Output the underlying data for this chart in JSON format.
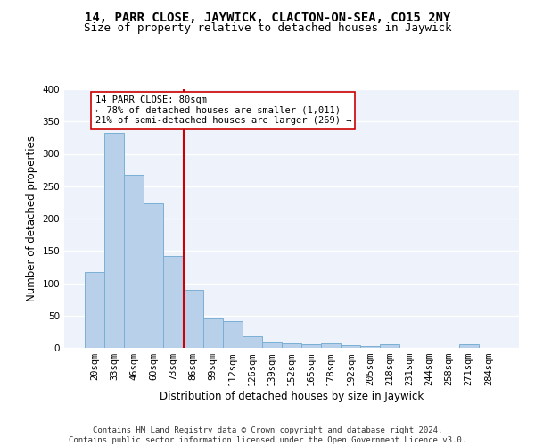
{
  "title": "14, PARR CLOSE, JAYWICK, CLACTON-ON-SEA, CO15 2NY",
  "subtitle": "Size of property relative to detached houses in Jaywick",
  "xlabel": "Distribution of detached houses by size in Jaywick",
  "ylabel": "Number of detached properties",
  "categories": [
    "20sqm",
    "33sqm",
    "46sqm",
    "60sqm",
    "73sqm",
    "86sqm",
    "99sqm",
    "112sqm",
    "126sqm",
    "139sqm",
    "152sqm",
    "165sqm",
    "178sqm",
    "192sqm",
    "205sqm",
    "218sqm",
    "231sqm",
    "244sqm",
    "258sqm",
    "271sqm",
    "284sqm"
  ],
  "values": [
    117,
    332,
    267,
    223,
    142,
    90,
    46,
    42,
    18,
    9,
    7,
    5,
    7,
    4,
    3,
    5,
    0,
    0,
    0,
    5,
    0
  ],
  "bar_color": "#b8d0ea",
  "bar_edge_color": "#7aafd4",
  "vline_color": "#cc0000",
  "annotation_text": "14 PARR CLOSE: 80sqm\n← 78% of detached houses are smaller (1,011)\n21% of semi-detached houses are larger (269) →",
  "annotation_box_color": "#ffffff",
  "annotation_box_edge": "#cc0000",
  "ylim": [
    0,
    400
  ],
  "yticks": [
    0,
    50,
    100,
    150,
    200,
    250,
    300,
    350,
    400
  ],
  "background_color": "#edf2fb",
  "grid_color": "#ffffff",
  "footer": "Contains HM Land Registry data © Crown copyright and database right 2024.\nContains public sector information licensed under the Open Government Licence v3.0.",
  "title_fontsize": 10,
  "subtitle_fontsize": 9,
  "xlabel_fontsize": 8.5,
  "ylabel_fontsize": 8.5,
  "tick_fontsize": 7.5,
  "annotation_fontsize": 7.5,
  "footer_fontsize": 6.5
}
